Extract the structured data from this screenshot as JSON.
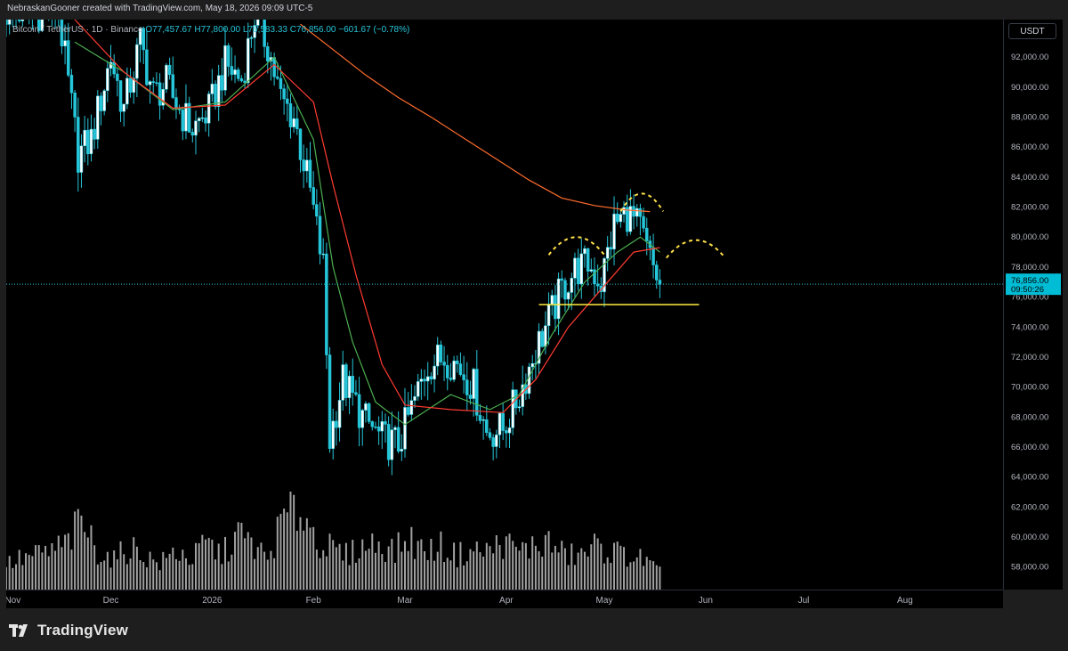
{
  "header": {
    "text": "NebraskanGooner created with TradingView.com, May 18, 2026 09:09 UTC-5"
  },
  "legend": {
    "symbol": "Bitcoin / TetherUS · 1D · Binance",
    "open": "O77,457.67",
    "high": "H77,800.00",
    "low": "L76,583.33",
    "close": "C76,856.00",
    "change": "−601.67 (−0.78%)"
  },
  "price_scale": {
    "currency": "USDT",
    "last_price": "76,856.00",
    "countdown": "09:50:26"
  },
  "footer": {
    "brand": "TradingView"
  },
  "colors": {
    "background": "#000000",
    "frame": "#1e1e1e",
    "candle": "#26c6da",
    "volume": "#bdbdbd",
    "ma_fast": "#4caf50",
    "ma_slow": "#ff3b30",
    "ma_long": "#ff6d2d",
    "support_line": "#ffeb3b",
    "pattern_dots": "#ffe04a"
  },
  "chart_data": {
    "type": "candlestick",
    "symbol": "BTCUSDT",
    "timeframe": "1D",
    "exchange": "Binance",
    "y_axis": {
      "unit": "USDT",
      "min": 56500,
      "max": 94500,
      "ticks": [
        58000,
        60000,
        62000,
        64000,
        66000,
        68000,
        70000,
        72000,
        74000,
        76000,
        78000,
        80000,
        82000,
        84000,
        86000,
        88000,
        90000,
        92000
      ],
      "tick_labels": [
        "58,000.00",
        "60,000.00",
        "62,000.00",
        "64,000.00",
        "66,000.00",
        "68,000.00",
        "70,000.00",
        "72,000.00",
        "74,000.00",
        "76,000.00",
        "78,000.00",
        "80,000.00",
        "82,000.00",
        "84,000.00",
        "86,000.00",
        "88,000.00",
        "90,000.00",
        "92,000.00"
      ]
    },
    "x_axis": {
      "start": "2025-10-30",
      "end": "2026-08-31",
      "tick_dates": [
        "2025-11-01",
        "2025-12-01",
        "2026-01-01",
        "2026-02-01",
        "2026-03-01",
        "2026-04-01",
        "2026-05-01",
        "2026-06-01",
        "2026-07-01",
        "2026-08-01"
      ],
      "tick_labels": [
        "Nov",
        "Dec",
        "2026",
        "Feb",
        "Mar",
        "Apr",
        "May",
        "Jun",
        "Jul",
        "Aug"
      ]
    },
    "price_series": {
      "from": "2025-10-30",
      "to": "2026-05-18",
      "dates": [
        "2025-11-15",
        "2025-11-21",
        "2025-11-25",
        "2025-12-01",
        "2025-12-05",
        "2025-12-10",
        "2025-12-14",
        "2025-12-18",
        "2025-12-22",
        "2025-12-26",
        "2025-12-31",
        "2026-01-05",
        "2026-01-10",
        "2026-01-14",
        "2026-01-18",
        "2026-01-22",
        "2026-01-26",
        "2026-01-31",
        "2026-02-04",
        "2026-02-06",
        "2026-02-10",
        "2026-02-16",
        "2026-02-22",
        "2026-02-27",
        "2026-03-03",
        "2026-03-08",
        "2026-03-13",
        "2026-03-17",
        "2026-03-22",
        "2026-03-26",
        "2026-03-31",
        "2026-04-05",
        "2026-04-10",
        "2026-04-14",
        "2026-04-18",
        "2026-04-22",
        "2026-04-26",
        "2026-04-30",
        "2026-05-04",
        "2026-05-08",
        "2026-05-12",
        "2026-05-15",
        "2026-05-18"
      ],
      "closes": [
        95000,
        85500,
        86500,
        92000,
        88500,
        93000,
        89500,
        90200,
        88500,
        87200,
        88400,
        91500,
        90500,
        94800,
        92800,
        89200,
        88000,
        83000,
        78000,
        66500,
        70500,
        68000,
        66500,
        66200,
        68500,
        71500,
        72000,
        71500,
        70000,
        67000,
        67200,
        69500,
        72500,
        74500,
        76500,
        77800,
        78200,
        77000,
        80800,
        81600,
        80500,
        78500,
        76856
      ]
    },
    "moving_averages": [
      {
        "label": "fast MA",
        "dates": [
          "2025-11-20",
          "2025-12-05",
          "2025-12-20",
          "2026-01-05",
          "2026-01-20",
          "2026-02-01",
          "2026-02-07",
          "2026-02-13",
          "2026-02-20",
          "2026-03-01",
          "2026-03-15",
          "2026-03-27",
          "2026-04-05",
          "2026-04-15",
          "2026-04-25",
          "2026-05-05",
          "2026-05-12",
          "2026-05-18"
        ],
        "values": [
          93000,
          91000,
          88500,
          89000,
          92000,
          86500,
          78000,
          73000,
          69000,
          67500,
          69500,
          68500,
          69500,
          73500,
          77000,
          79000,
          80000,
          79000
        ]
      },
      {
        "label": "medium MA",
        "dates": [
          "2025-11-20",
          "2025-12-05",
          "2025-12-20",
          "2026-01-05",
          "2026-01-20",
          "2026-02-01",
          "2026-02-07",
          "2026-02-14",
          "2026-02-22",
          "2026-03-01",
          "2026-03-15",
          "2026-03-31",
          "2026-04-10",
          "2026-04-20",
          "2026-04-30",
          "2026-05-10",
          "2026-05-18"
        ],
        "values": [
          94500,
          91000,
          88600,
          88800,
          91500,
          89000,
          83500,
          77500,
          71500,
          68800,
          68500,
          68300,
          70500,
          74000,
          76500,
          79000,
          79300
        ]
      },
      {
        "label": "long MA",
        "dates": [
          "2026-01-28",
          "2026-02-07",
          "2026-02-17",
          "2026-02-27",
          "2026-03-09",
          "2026-03-19",
          "2026-03-29",
          "2026-04-08",
          "2026-04-18",
          "2026-04-28",
          "2026-05-08",
          "2026-05-15"
        ],
        "values": [
          94200,
          92500,
          90800,
          89300,
          88000,
          86600,
          85200,
          83800,
          82600,
          82100,
          81800,
          81700
        ]
      }
    ],
    "annotations": {
      "horizontal_support": {
        "price": 75500,
        "from": "2026-04-11",
        "to": "2026-05-30"
      },
      "last_price_line": {
        "price": 76856
      },
      "pattern": "head-and-shoulders arcs",
      "arcs": [
        {
          "from": "2026-04-14",
          "to": "2026-05-01",
          "peak": 80000
        },
        {
          "from": "2026-05-06",
          "to": "2026-05-19",
          "peak": 82900
        },
        {
          "from": "2026-05-20",
          "to": "2026-06-07",
          "peak": 79800
        }
      ]
    },
    "volume": {
      "relative_heights": [
        0.3,
        0.35,
        0.4,
        0.45,
        0.55,
        0.8,
        0.45,
        0.35,
        0.5,
        0.4,
        0.3,
        0.45,
        0.35,
        0.55,
        0.4,
        0.65,
        0.5,
        0.35,
        0.85,
        0.95,
        0.6,
        0.45,
        0.4,
        0.5,
        0.55,
        0.45,
        0.6,
        0.45,
        0.5,
        0.4,
        0.45,
        0.45,
        0.55,
        0.45,
        0.5,
        0.55,
        0.4,
        0.4,
        0.5,
        0.45,
        0.4,
        0.35,
        0.2
      ]
    },
    "grid": false,
    "legend_position": "top-left"
  }
}
